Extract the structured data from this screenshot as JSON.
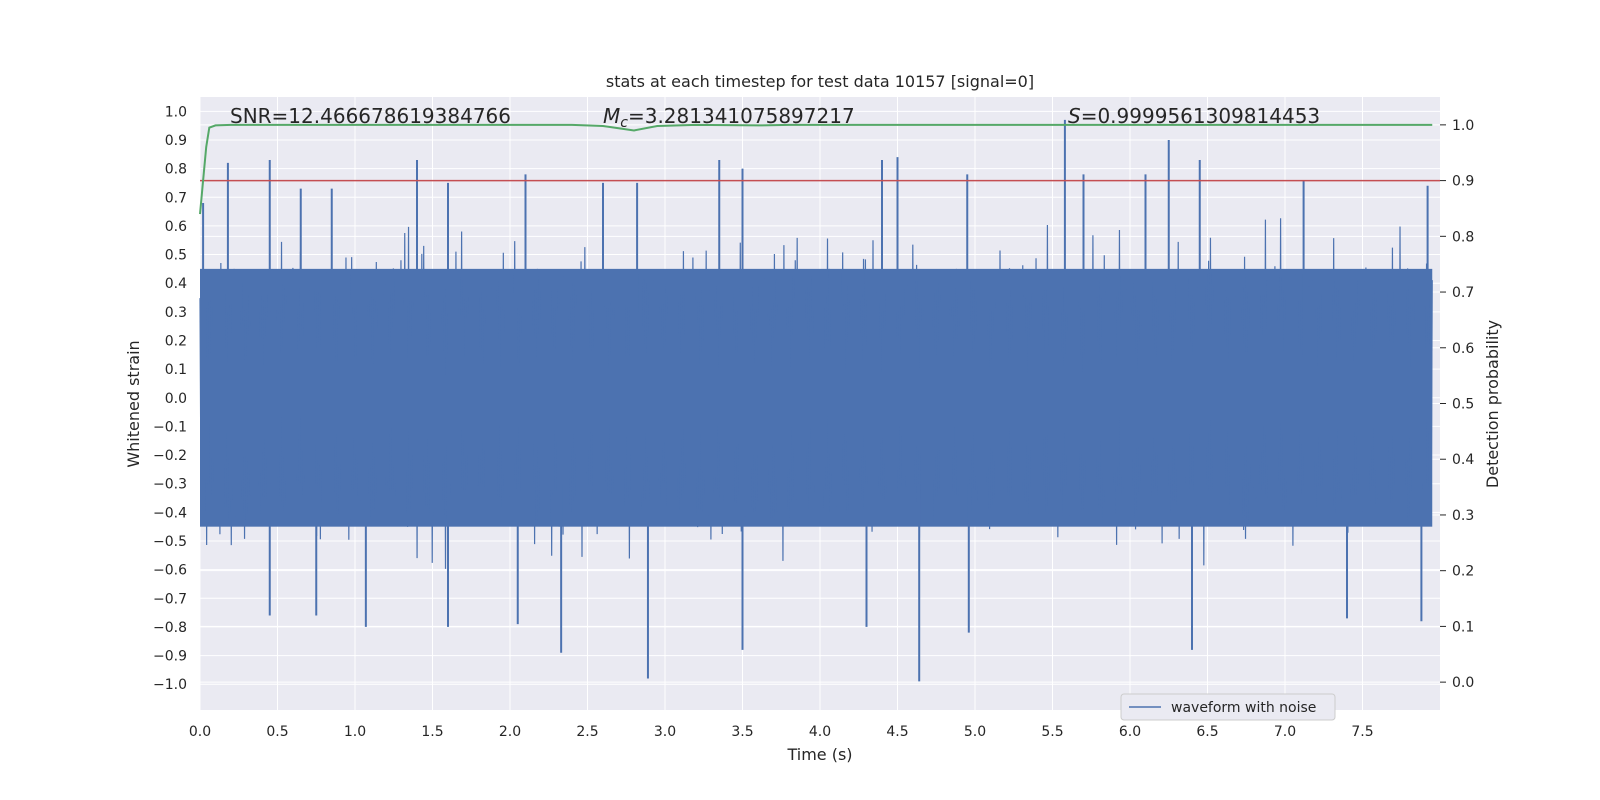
{
  "chart_data": {
    "type": "line",
    "title": "stats at each timestep for test data 10157 [signal=0]",
    "xlabel": "Time (s)",
    "ylabel_left": "Whitened strain",
    "ylabel_right": "Detection probability",
    "xlim": [
      0.0,
      8.0
    ],
    "ylim_left": [
      -1.09,
      1.05
    ],
    "ylim_right": [
      -0.05,
      1.05
    ],
    "x_ticks": [
      "0.0",
      "0.5",
      "1.0",
      "1.5",
      "2.0",
      "2.5",
      "3.0",
      "3.5",
      "4.0",
      "4.5",
      "5.0",
      "5.5",
      "6.0",
      "6.5",
      "7.0",
      "7.5"
    ],
    "y_left_ticks": [
      "1.0",
      "0.9",
      "0.8",
      "0.7",
      "0.6",
      "0.5",
      "0.4",
      "0.3",
      "0.2",
      "0.1",
      "0.0",
      "−0.1",
      "−0.2",
      "−0.3",
      "−0.4",
      "−0.5",
      "−0.6",
      "−0.7",
      "−0.8",
      "−0.9",
      "−1.0"
    ],
    "y_right_ticks": [
      "1.0",
      "0.9",
      "0.8",
      "0.7",
      "0.6",
      "0.5",
      "0.4",
      "0.3",
      "0.2",
      "0.1",
      "0.0"
    ],
    "grid": true,
    "annotations": {
      "snr": "SNR=12.466678619384766",
      "mc_symbol": "M",
      "mc_sub": "c",
      "mc_value": "=3.281341075897217",
      "s_symbol": "S",
      "s_value": "=0.9999561309814453"
    },
    "threshold": {
      "value": 0.9,
      "axis": "right",
      "color": "#c44e52"
    },
    "series": [
      {
        "name": "waveform with noise",
        "axis": "left",
        "color": "#4c72b0",
        "envelope_typical": [
          0.45,
          -0.45
        ],
        "peaks": [
          {
            "x": 0.02,
            "y": 0.68
          },
          {
            "x": 0.18,
            "y": 0.82
          },
          {
            "x": 0.45,
            "y": 0.83
          },
          {
            "x": 0.65,
            "y": 0.73
          },
          {
            "x": 0.85,
            "y": 0.73
          },
          {
            "x": 1.4,
            "y": 0.83
          },
          {
            "x": 1.6,
            "y": 0.75
          },
          {
            "x": 2.1,
            "y": 0.78
          },
          {
            "x": 2.6,
            "y": 0.75
          },
          {
            "x": 2.82,
            "y": 0.75
          },
          {
            "x": 3.35,
            "y": 0.83
          },
          {
            "x": 3.5,
            "y": 0.8
          },
          {
            "x": 4.4,
            "y": 0.83
          },
          {
            "x": 4.5,
            "y": 0.84
          },
          {
            "x": 4.95,
            "y": 0.78
          },
          {
            "x": 5.58,
            "y": 0.97
          },
          {
            "x": 5.7,
            "y": 0.78
          },
          {
            "x": 6.1,
            "y": 0.78
          },
          {
            "x": 6.25,
            "y": 0.9
          },
          {
            "x": 6.45,
            "y": 0.83
          },
          {
            "x": 7.12,
            "y": 0.76
          },
          {
            "x": 7.92,
            "y": 0.74
          }
        ],
        "troughs": [
          {
            "x": 0.45,
            "y": -0.76
          },
          {
            "x": 0.75,
            "y": -0.76
          },
          {
            "x": 1.07,
            "y": -0.8
          },
          {
            "x": 1.6,
            "y": -0.8
          },
          {
            "x": 2.05,
            "y": -0.79
          },
          {
            "x": 2.33,
            "y": -0.89
          },
          {
            "x": 2.89,
            "y": -0.98
          },
          {
            "x": 3.5,
            "y": -0.88
          },
          {
            "x": 4.3,
            "y": -0.8
          },
          {
            "x": 4.64,
            "y": -0.99
          },
          {
            "x": 4.96,
            "y": -0.82
          },
          {
            "x": 6.4,
            "y": -0.88
          },
          {
            "x": 7.4,
            "y": -0.77
          },
          {
            "x": 7.88,
            "y": -0.78
          }
        ]
      },
      {
        "name": "detection probability",
        "axis": "right",
        "color": "#55a868",
        "x": [
          0.0,
          0.02,
          0.04,
          0.06,
          0.1,
          0.2,
          2.4,
          2.6,
          2.8,
          2.95,
          3.2,
          3.6,
          3.8,
          4.4,
          7.95
        ],
        "y": [
          0.84,
          0.9,
          0.96,
          0.995,
          0.999,
          1.0,
          1.0,
          0.998,
          0.99,
          0.998,
          1.0,
          0.999,
          1.0,
          1.0,
          1.0
        ]
      }
    ],
    "legend": {
      "entries": [
        "waveform with noise"
      ],
      "placement": "lower-right"
    }
  }
}
